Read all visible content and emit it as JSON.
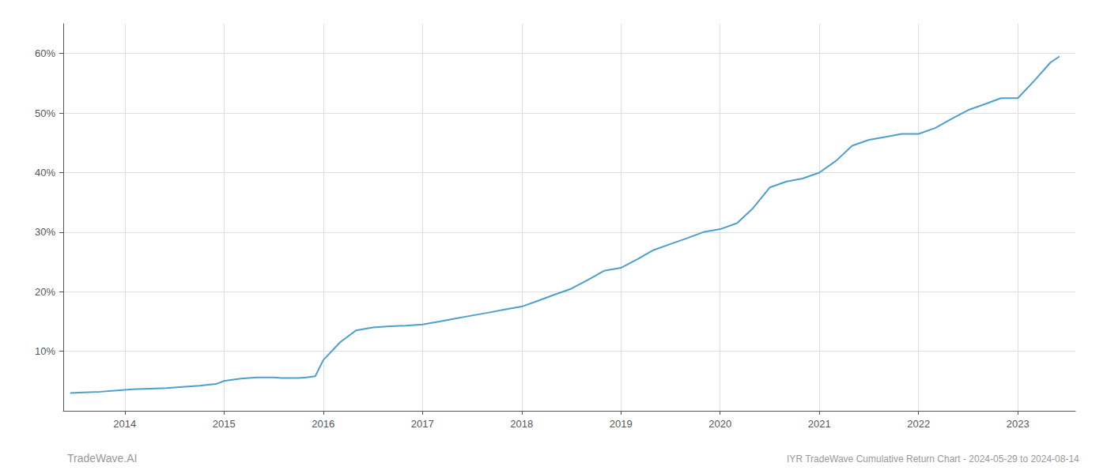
{
  "chart_data": {
    "type": "line",
    "title": "IYR TradeWave Cumulative Return Chart - 2024-05-29 to 2024-08-14",
    "annotations": [
      "TradeWave.AI"
    ],
    "color": "#4d9fce",
    "x": [
      2013.45,
      2013.58,
      2013.75,
      2013.92,
      2014.08,
      2014.25,
      2014.42,
      2014.58,
      2014.75,
      2014.92,
      2015.0,
      2015.08,
      2015.17,
      2015.25,
      2015.33,
      2015.42,
      2015.5,
      2015.58,
      2015.67,
      2015.75,
      2015.83,
      2015.92,
      2016.0,
      2016.17,
      2016.33,
      2016.5,
      2016.67,
      2016.83,
      2017.0,
      2017.17,
      2017.33,
      2017.5,
      2017.67,
      2017.83,
      2018.0,
      2018.17,
      2018.33,
      2018.5,
      2018.67,
      2018.83,
      2019.0,
      2019.17,
      2019.33,
      2019.5,
      2019.67,
      2019.83,
      2020.0,
      2020.17,
      2020.33,
      2020.5,
      2020.67,
      2020.83,
      2021.0,
      2021.17,
      2021.33,
      2021.5,
      2021.67,
      2021.83,
      2022.0,
      2022.17,
      2022.33,
      2022.5,
      2022.67,
      2022.83,
      2023.0,
      2023.17,
      2023.33,
      2023.42
    ],
    "values": [
      3.0,
      3.1,
      3.2,
      3.4,
      3.6,
      3.7,
      3.8,
      4.0,
      4.2,
      4.5,
      5.0,
      5.2,
      5.4,
      5.5,
      5.6,
      5.6,
      5.6,
      5.5,
      5.5,
      5.5,
      5.6,
      5.8,
      8.5,
      11.5,
      13.5,
      14.0,
      14.2,
      14.3,
      14.5,
      15.0,
      15.5,
      16.0,
      16.5,
      17.0,
      17.5,
      18.5,
      19.5,
      20.5,
      22.0,
      23.5,
      24.0,
      25.5,
      27.0,
      28.0,
      29.0,
      30.0,
      30.5,
      31.5,
      34.0,
      37.5,
      38.5,
      39.0,
      40.0,
      42.0,
      44.5,
      45.5,
      46.0,
      46.5,
      46.5,
      47.5,
      49.0,
      50.5,
      51.5,
      52.5,
      52.5,
      55.5,
      58.5,
      59.5
    ],
    "xlim": [
      2013.38,
      2023.58
    ],
    "xticks": [
      2014,
      2015,
      2016,
      2017,
      2018,
      2019,
      2020,
      2021,
      2022,
      2023
    ],
    "ylim": [
      0,
      65
    ],
    "yticks": [
      {
        "value": 10,
        "label": "10%"
      },
      {
        "value": 20,
        "label": "20%"
      },
      {
        "value": 30,
        "label": "30%"
      },
      {
        "value": 40,
        "label": "40%"
      },
      {
        "value": 50,
        "label": "50%"
      },
      {
        "value": 60,
        "label": "60%"
      }
    ],
    "grid": true
  }
}
